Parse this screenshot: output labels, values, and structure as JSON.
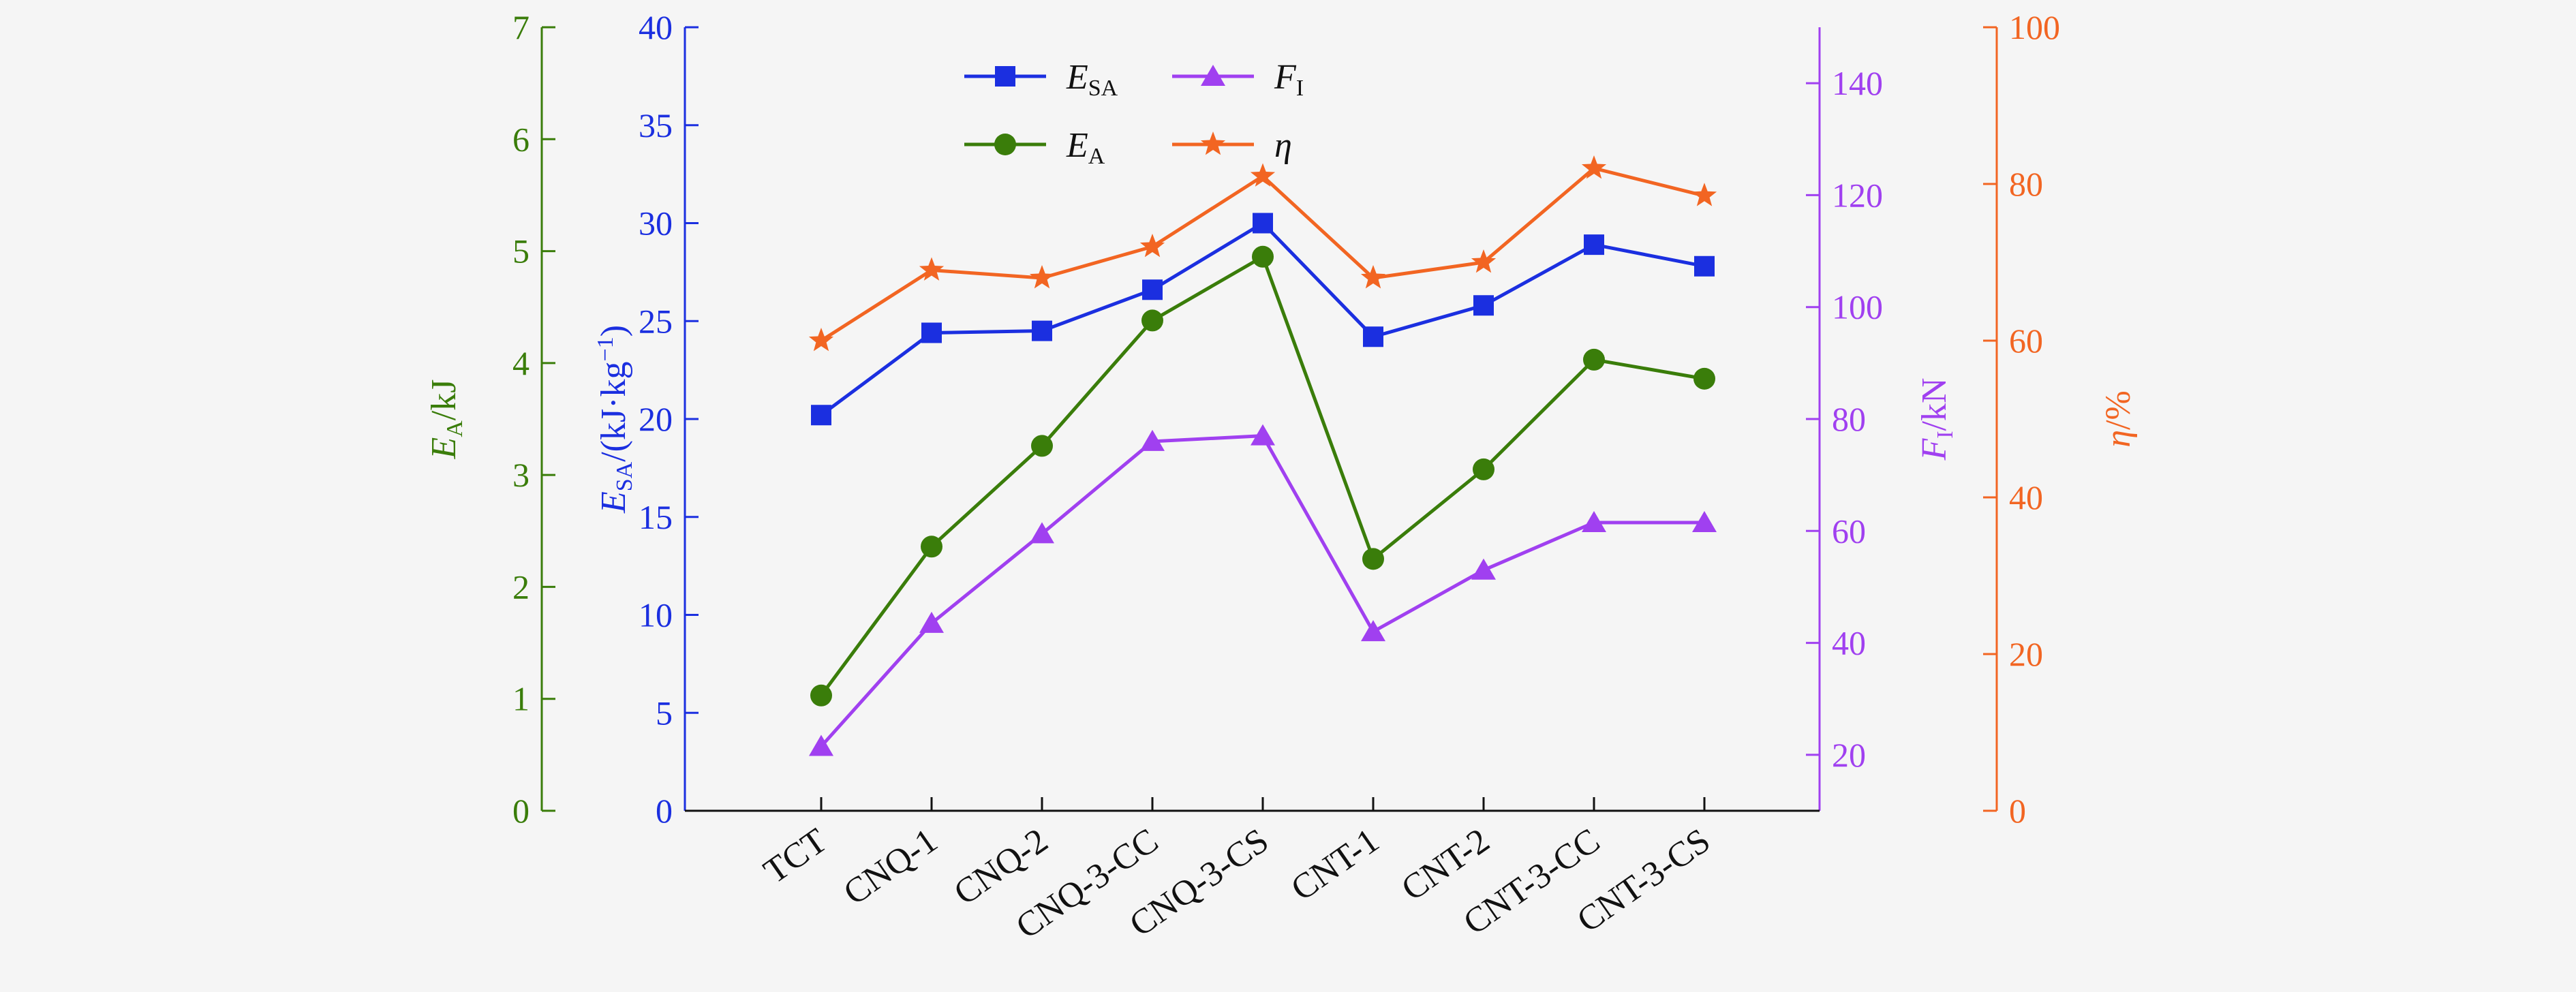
{
  "chart_data": {
    "type": "line",
    "categories": [
      "TCT",
      "CNQ-1",
      "CNQ-2",
      "CNQ-3-CC",
      "CNQ-3-CS",
      "CNT-1",
      "CNT-2",
      "CNT-3-CC",
      "CNT-3-CS"
    ],
    "axes": {
      "ea": {
        "label_main": "E",
        "label_sub": "A",
        "label_suffix": "/kJ",
        "range": [
          0,
          7
        ],
        "ticks": [
          "0",
          "1",
          "2",
          "3",
          "4",
          "5",
          "6",
          "7"
        ],
        "color": "#3a7d0a"
      },
      "esa": {
        "label_main": "E",
        "label_sub": "SA",
        "label_suffix": "/(kJ·kg",
        "label_sup": "−1",
        "label_close": ")",
        "range": [
          0,
          40
        ],
        "ticks": [
          "0",
          "5",
          "10",
          "15",
          "20",
          "25",
          "30",
          "35",
          "40"
        ],
        "color": "#1b2fe0"
      },
      "fi": {
        "label_main": "F",
        "label_sub": "I",
        "label_suffix": "/kN",
        "range": [
          10,
          150
        ],
        "ticks": [
          "20",
          "40",
          "60",
          "80",
          "100",
          "120",
          "140"
        ],
        "color": "#a040f0"
      },
      "eta": {
        "label_main": "η",
        "label_suffix": "/%",
        "range": [
          0,
          100
        ],
        "ticks": [
          "0",
          "20",
          "40",
          "60",
          "80",
          "100"
        ],
        "color": "#f26522"
      }
    },
    "series": [
      {
        "key": "esa",
        "axis": "esa",
        "name_main": "E",
        "name_sub": "SA",
        "color": "#1b2fe0",
        "marker": "square",
        "values": [
          20.2,
          24.4,
          24.5,
          26.6,
          30.0,
          24.2,
          25.8,
          28.9,
          27.8
        ]
      },
      {
        "key": "fi",
        "axis": "fi",
        "name_main": "F",
        "name_sub": "I",
        "color": "#a040f0",
        "marker": "triangle",
        "values": [
          21.5,
          43.5,
          59.5,
          76.0,
          77.0,
          42.0,
          53.0,
          61.5,
          61.5
        ]
      },
      {
        "key": "ea",
        "axis": "ea",
        "name_main": "E",
        "name_sub": "A",
        "color": "#3a7d0a",
        "marker": "circle",
        "values": [
          1.03,
          2.36,
          3.26,
          4.38,
          4.95,
          2.25,
          3.05,
          4.03,
          3.86
        ]
      },
      {
        "key": "eta",
        "axis": "eta",
        "name_main": "η",
        "name_sub": "",
        "color": "#f26522",
        "marker": "star",
        "values": [
          60.0,
          69.0,
          68.0,
          72.0,
          81.0,
          68.0,
          70.0,
          82.0,
          78.5
        ]
      }
    ],
    "grid": false,
    "legend_position": "top-left"
  }
}
